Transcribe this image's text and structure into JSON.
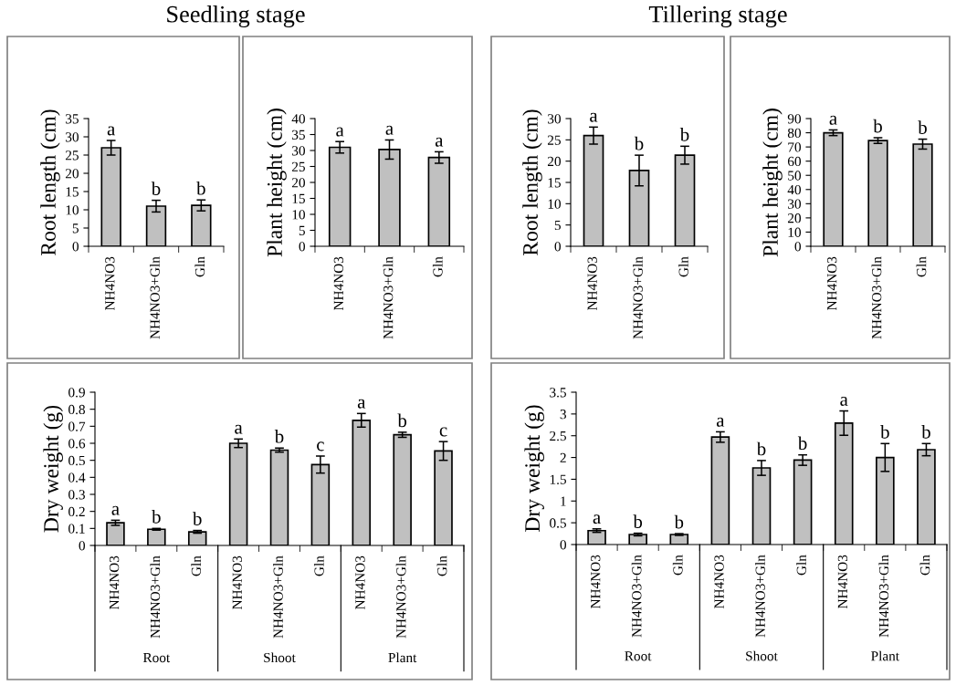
{
  "chart_data": [
    {
      "type": "bar",
      "title": "Seedling stage",
      "ylabel": "Root length (cm)",
      "categories": [
        "NH4NO3",
        "NH4NO3+Gln",
        "Gln"
      ],
      "color": "#c0c0c0",
      "values": [
        27,
        11,
        11.2
      ],
      "errors": [
        2,
        1.6,
        1.5
      ],
      "value_labels": [
        "a",
        "b",
        "b"
      ],
      "ylim": [
        0,
        35
      ],
      "yticks": [
        0,
        5,
        10,
        15,
        20,
        25,
        30,
        35
      ],
      "grid": false,
      "legend": false
    },
    {
      "type": "bar",
      "ylabel": "Plant height (cm)",
      "categories": [
        "NH4NO3",
        "NH4NO3+Gln",
        "Gln"
      ],
      "color": "#c0c0c0",
      "values": [
        31,
        30.3,
        27.8
      ],
      "errors": [
        1.8,
        3,
        1.8
      ],
      "value_labels": [
        "a",
        "a",
        "a"
      ],
      "ylim": [
        0,
        40
      ],
      "yticks": [
        0,
        5,
        10,
        15,
        20,
        25,
        30,
        35,
        40
      ],
      "grid": false,
      "legend": false
    },
    {
      "type": "bar",
      "title": "Tillering stage",
      "ylabel": "Root length (cm)",
      "categories": [
        "NH4NO3",
        "NH4NO3+Gln",
        "Gln"
      ],
      "color": "#c0c0c0",
      "values": [
        26,
        17.8,
        21.4
      ],
      "errors": [
        2,
        3.6,
        2.1
      ],
      "value_labels": [
        "a",
        "b",
        "b"
      ],
      "ylim": [
        0,
        30
      ],
      "yticks": [
        0,
        5,
        10,
        15,
        20,
        25,
        30
      ],
      "grid": false,
      "legend": false
    },
    {
      "type": "bar",
      "ylabel": "Plant height (cm)",
      "categories": [
        "NH4NO3",
        "NH4NO3+Gln",
        "Gln"
      ],
      "color": "#c0c0c0",
      "values": [
        80,
        74.5,
        72
      ],
      "errors": [
        2,
        2,
        3.5
      ],
      "value_labels": [
        "a",
        "b",
        "b"
      ],
      "ylim": [
        0,
        90
      ],
      "yticks": [
        0,
        10,
        20,
        30,
        40,
        50,
        60,
        70,
        80,
        90
      ],
      "grid": false,
      "legend": false
    },
    {
      "type": "bar",
      "ylabel": "Dry weight (g)",
      "categories": [
        "NH4NO3",
        "NH4NO3+Gln",
        "Gln",
        "NH4NO3",
        "NH4NO3+Gln",
        "Gln",
        "NH4NO3",
        "NH4NO3+Gln",
        "Gln"
      ],
      "color": "#c0c0c0",
      "values": [
        0.133,
        0.095,
        0.08,
        0.6,
        0.56,
        0.475,
        0.735,
        0.65,
        0.555
      ],
      "errors": [
        0.015,
        0.005,
        0.008,
        0.025,
        0.012,
        0.05,
        0.04,
        0.015,
        0.055
      ],
      "value_labels": [
        "a",
        "b",
        "b",
        "a",
        "b",
        "c",
        "a",
        "b",
        "c"
      ],
      "ylim": [
        0,
        0.9
      ],
      "yticks": [
        0,
        0.1,
        0.2,
        0.3,
        0.4,
        0.5,
        0.6,
        0.7,
        0.8,
        0.9
      ],
      "grid": false,
      "legend": false,
      "annotations": [
        "Root",
        "Shoot",
        "Plant"
      ]
    },
    {
      "type": "bar",
      "ylabel": "Dry weight (g)",
      "categories": [
        "NH4NO3",
        "NH4NO3+Gln",
        "Gln",
        "NH4NO3",
        "NH4NO3+Gln",
        "Gln",
        "NH4NO3",
        "NH4NO3+Gln",
        "Gln"
      ],
      "color": "#c0c0c0",
      "values": [
        0.32,
        0.23,
        0.23,
        2.47,
        1.76,
        1.94,
        2.79,
        2.0,
        2.18
      ],
      "errors": [
        0.04,
        0.03,
        0.02,
        0.12,
        0.17,
        0.12,
        0.28,
        0.32,
        0.14
      ],
      "value_labels": [
        "a",
        "b",
        "b",
        "a",
        "b",
        "b",
        "a",
        "b",
        "b"
      ],
      "ylim": [
        0,
        3.5
      ],
      "yticks": [
        0,
        0.5,
        1,
        1.5,
        2,
        2.5,
        3,
        3.5
      ],
      "grid": false,
      "legend": false,
      "annotations": [
        "Root",
        "Shoot",
        "Plant"
      ]
    }
  ]
}
